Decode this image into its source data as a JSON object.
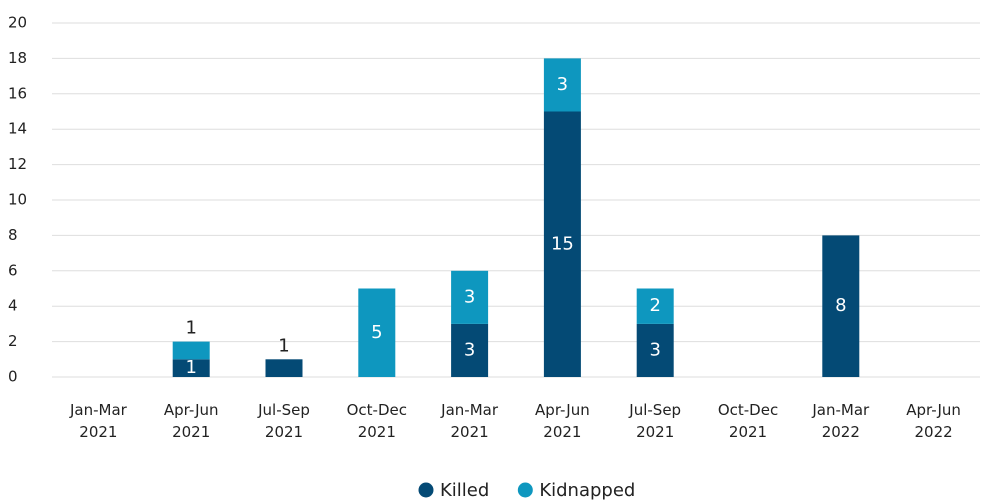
{
  "chart_data": {
    "type": "stacked_bar",
    "categories": [
      "Jan-Mar 2021",
      "Apr-Jun 2021",
      "Jul-Sep 2021",
      "Oct-Dec 2021",
      "Jan-Mar 2021",
      "Apr-Jun 2021",
      "Jul-Sep 2021",
      "Oct-Dec 2021",
      "Jan-Mar 2022",
      "Apr-Jun 2022"
    ],
    "series": [
      {
        "name": "Killed",
        "color": "#044a75",
        "values": [
          0,
          1,
          1,
          0,
          3,
          15,
          3,
          0,
          8,
          0
        ]
      },
      {
        "name": "Kidnapped",
        "color": "#0e97bf",
        "values": [
          0,
          1,
          0,
          5,
          3,
          3,
          2,
          0,
          0,
          0
        ]
      }
    ],
    "ylim": [
      0,
      20
    ],
    "yticks": [
      0,
      2,
      4,
      6,
      8,
      10,
      12,
      14,
      16,
      18,
      20
    ],
    "grid": true,
    "legend": "bottom"
  }
}
